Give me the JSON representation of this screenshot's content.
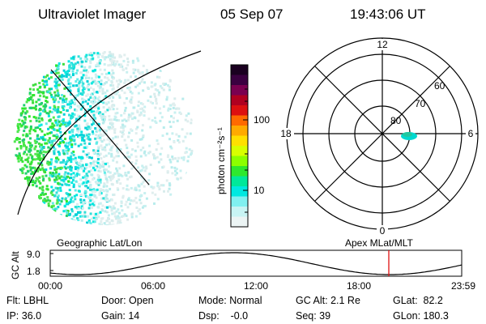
{
  "header": {
    "title": "Ultraviolet Imager",
    "date": "05 Sep 07",
    "time": "19:43:06 UT"
  },
  "colorbar": {
    "unit_label": "photon cm⁻²s⁻¹",
    "ticks": [
      "100",
      "10"
    ],
    "colors": [
      "#1a0020",
      "#3a0040",
      "#7a0050",
      "#b00020",
      "#dd1010",
      "#ff6a00",
      "#ffaa00",
      "#ffe000",
      "#d8ff00",
      "#8cff00",
      "#2ee82e",
      "#00e89a",
      "#00e8e0",
      "#80f0f0",
      "#c8f4f4",
      "#ecf4f4"
    ]
  },
  "polar_plot": {
    "mlt_labels": [
      "12",
      "18",
      "6",
      "0"
    ],
    "lat_labels": [
      "60",
      "70",
      "80"
    ]
  },
  "timeline": {
    "axis_label": "GC Alt",
    "y_ticks": [
      "9.0",
      "1.8"
    ],
    "left_title": "Geographic Lat/Lon",
    "right_title": "Apex MLat/MLT",
    "time_ticks": [
      "00:00",
      "06:00",
      "12:00",
      "18:00",
      "23:59"
    ],
    "marker_color": "#e01010"
  },
  "status": {
    "flt": "Flt: LBHL",
    "door": "Door: Open",
    "mode": "Mode: Normal",
    "gc_alt": "GC Alt: 2.1 Re",
    "glat": "GLat:  82.2",
    "ip": "IP: 36.0",
    "gain": "Gain: 14",
    "dsp": "Dsp:    -0.0",
    "seq": "Seq: 39",
    "glon": "GLon: 180.3"
  }
}
